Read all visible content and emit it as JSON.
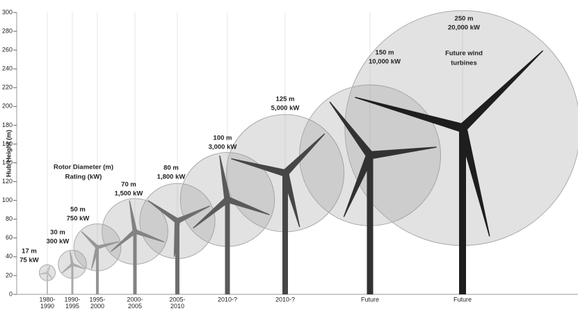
{
  "chart_data": {
    "type": "turbine",
    "y_label": "Hub Height (m)",
    "ylim": [
      0,
      300
    ],
    "yticks": [
      0,
      20,
      40,
      60,
      80,
      100,
      120,
      140,
      160,
      180,
      200,
      220,
      240,
      260,
      280,
      300
    ],
    "categories": [
      [
        "1980-",
        "1990"
      ],
      [
        "1990-",
        "1995"
      ],
      [
        "1995-",
        "2000"
      ],
      [
        "2000-",
        "2005"
      ],
      [
        "2005-",
        "2010"
      ],
      [
        "2010-?"
      ],
      [
        "2010-?"
      ],
      [
        "Future"
      ],
      [
        "Future"
      ]
    ],
    "hub_heights": [
      23,
      32,
      50,
      67,
      78,
      101,
      129,
      148,
      177
    ],
    "rotor_diameters": [
      17,
      30,
      50,
      70,
      80,
      100,
      125,
      150,
      250
    ],
    "rotor_diameter_labels": [
      "17 m",
      "30 m",
      "50 m",
      "70 m",
      "80 m",
      "100 m",
      "125 m",
      "150 m",
      "250 m"
    ],
    "ratings": [
      75,
      300,
      750,
      1500,
      1800,
      3000,
      5000,
      10000,
      20000
    ],
    "rating_labels": [
      "75 kW",
      "300 kW",
      "750 kW",
      "1,500 kW",
      "1,800 kW",
      "3,000 kW",
      "5,000 kW",
      "10,000 kW",
      "20,000 kW"
    ],
    "legend_lines": [
      "Rotor Diameter (m)",
      "Rating (kW)"
    ],
    "annotation_lines": [
      "Future wind",
      "turbines"
    ]
  }
}
